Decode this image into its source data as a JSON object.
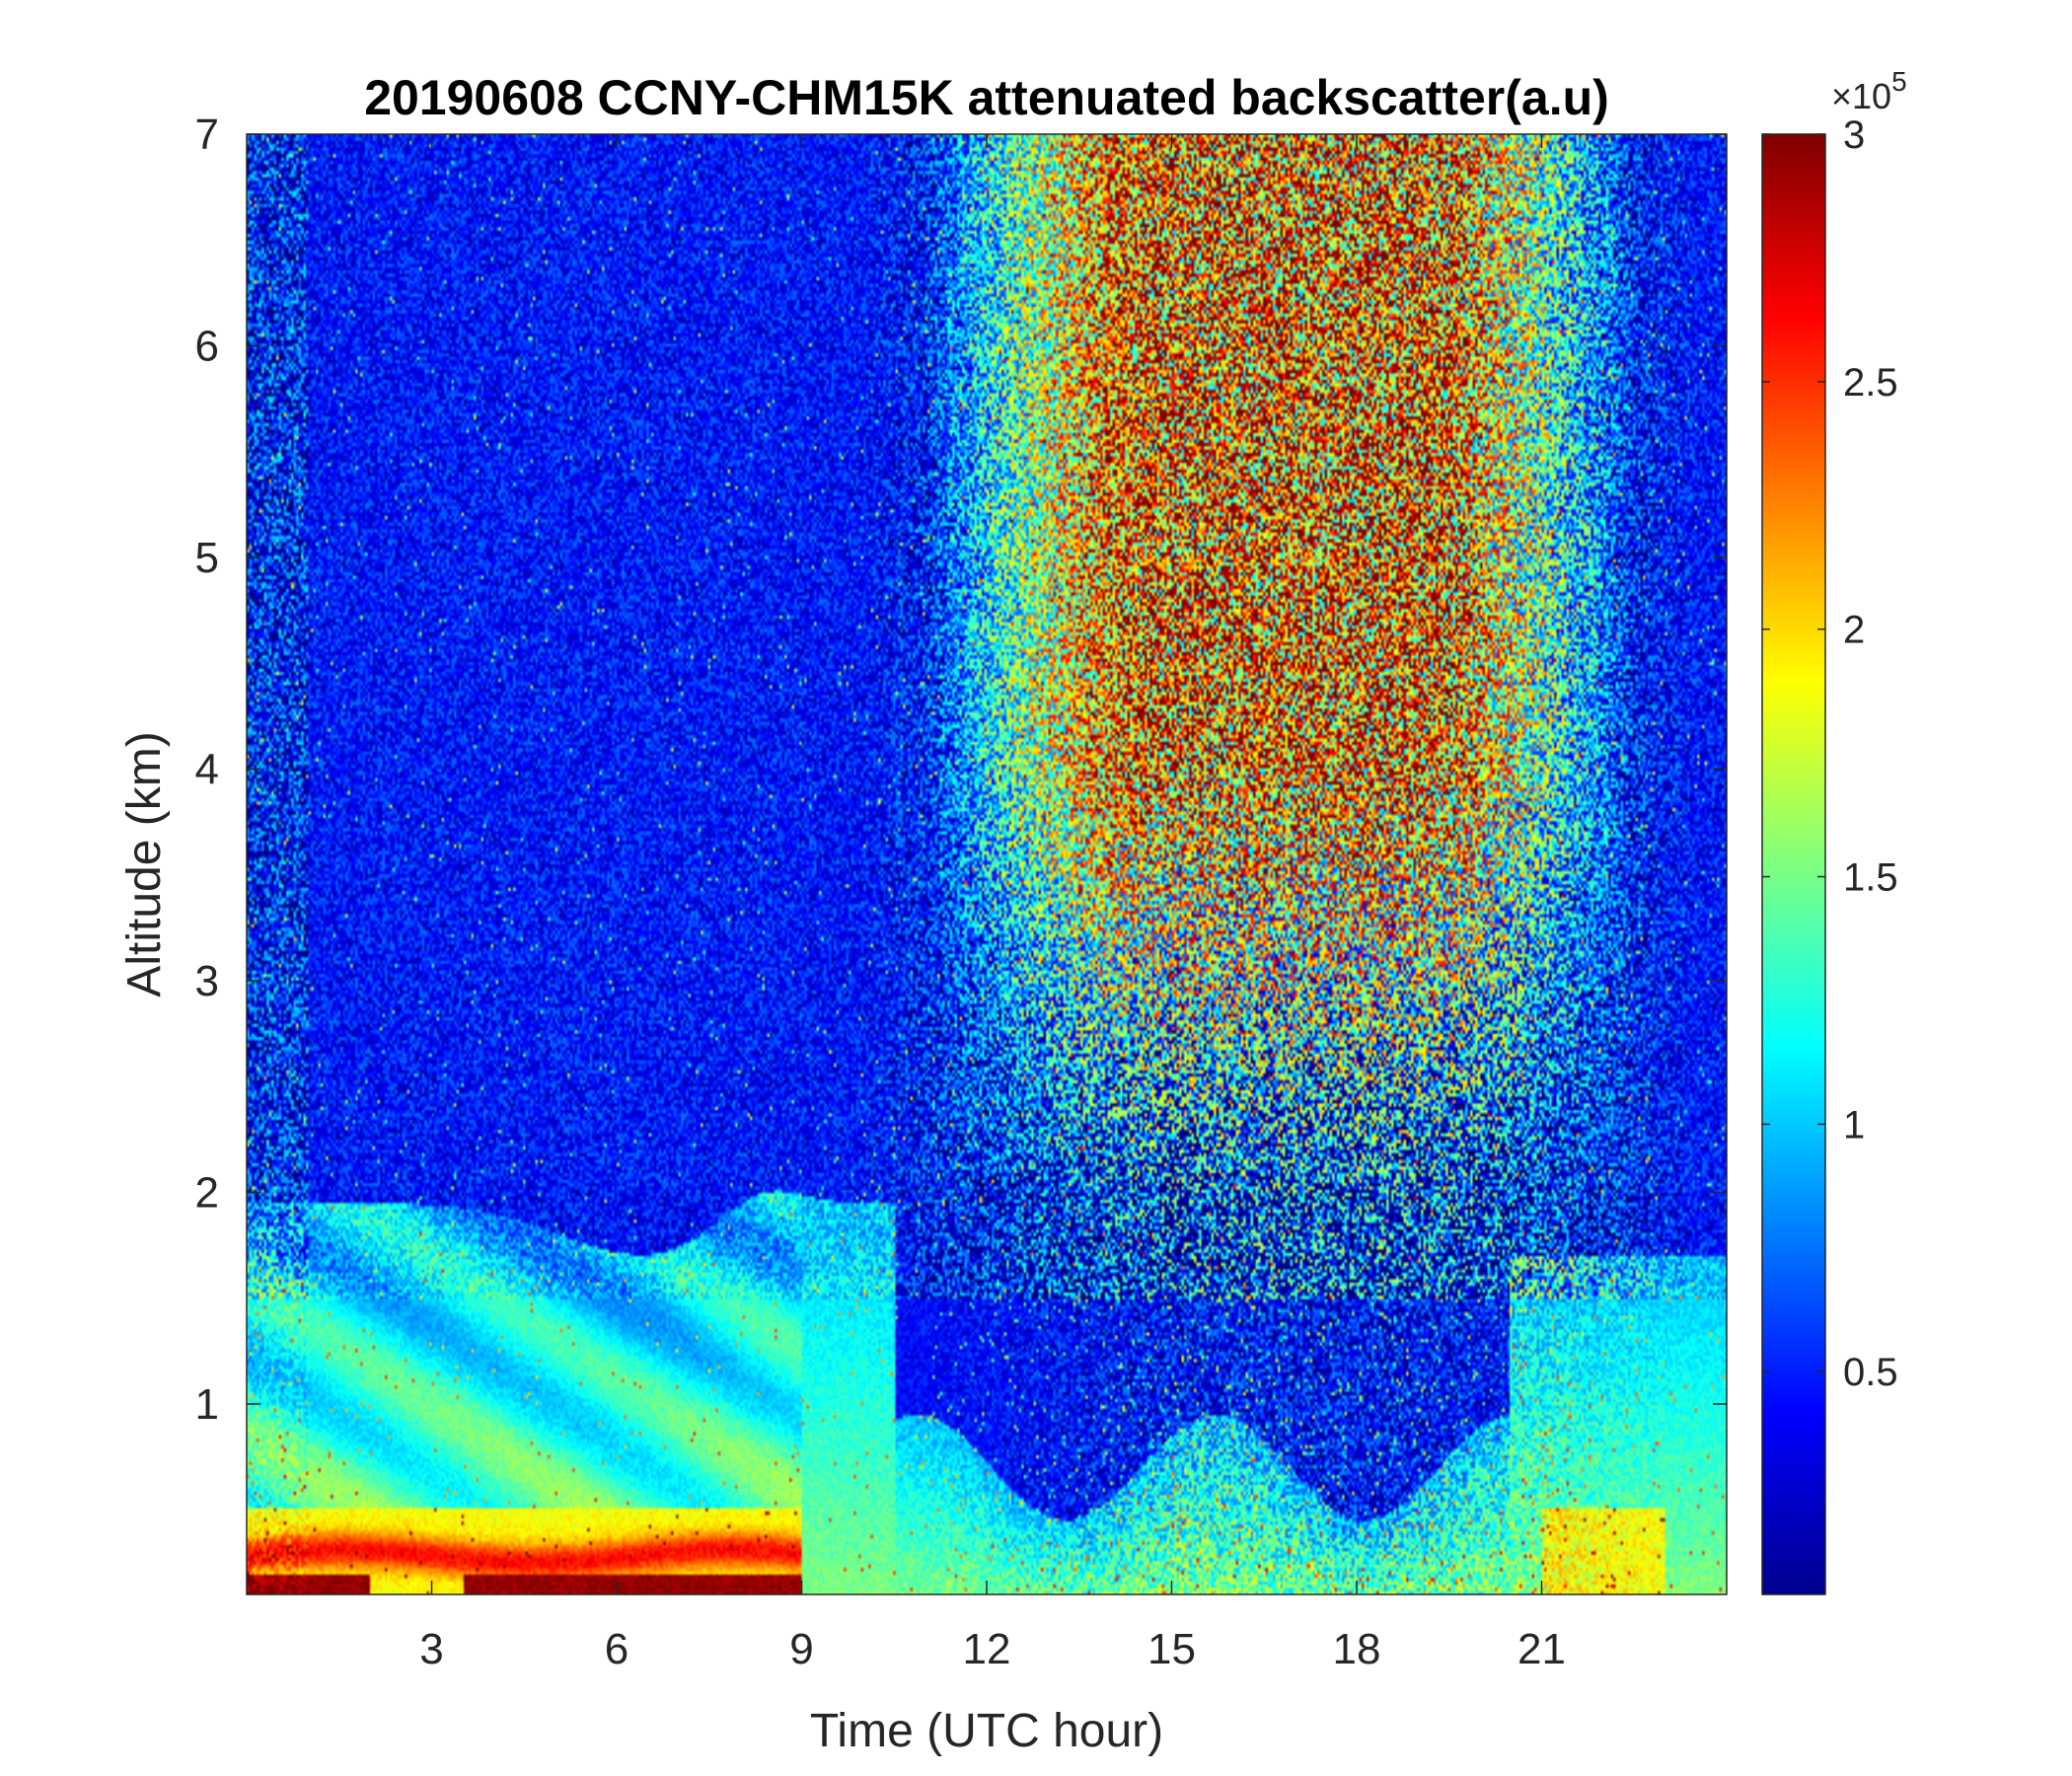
{
  "chart_data": {
    "type": "heatmap",
    "title": "20190608 CCNY-CHM15K attenuated backscatter(a.u)",
    "xlabel": "Time (UTC hour)",
    "ylabel": "Altitude (km)",
    "xlim": [
      0,
      24
    ],
    "ylim": [
      0.1,
      7
    ],
    "xticks": [
      3,
      6,
      9,
      12,
      15,
      18,
      21
    ],
    "yticks": [
      1,
      2,
      3,
      4,
      5,
      6,
      7
    ],
    "colorbar": {
      "colormap": "jet",
      "range": [
        0.05,
        3
      ],
      "exponent_label": "×10",
      "exponent": "5",
      "ticks": [
        0.5,
        1,
        1.5,
        2,
        2.5,
        3
      ],
      "tick_labels": [
        "0.5",
        "1",
        "1.5",
        "2",
        "2.5",
        "3"
      ]
    },
    "grid": false,
    "features": [
      {
        "hours": [
          0,
          9
        ],
        "altitude_km": [
          0.1,
          0.2
        ],
        "level": "saturated (~3)"
      },
      {
        "hours": [
          3,
          9
        ],
        "altitude_km": [
          0.2,
          0.45
        ],
        "level": "high (~2.2-2.8)"
      },
      {
        "hours": [
          0,
          11
        ],
        "altitude_km": [
          0.45,
          1.9
        ],
        "level": "moderate (~0.8-1.4)"
      },
      {
        "hours": [
          0,
          24
        ],
        "altitude_km": [
          1.9,
          3.5
        ],
        "level": "low (~0.1-0.3)"
      },
      {
        "hours": [
          11,
          21
        ],
        "altitude_km": [
          2.5,
          7
        ],
        "level": "noisy, mixed high (~1.5-3)"
      },
      {
        "hours": [
          21,
          24
        ],
        "altitude_km": [
          0.1,
          1.7
        ],
        "level": "moderate-high (~1-2)"
      }
    ]
  }
}
